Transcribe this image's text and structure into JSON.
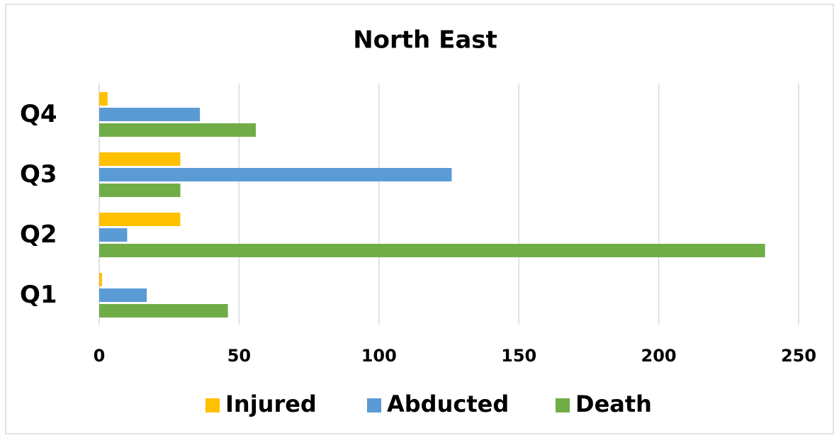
{
  "chart_data": {
    "type": "bar",
    "orientation": "horizontal",
    "title": "North East",
    "categories": [
      "Q1",
      "Q2",
      "Q3",
      "Q4"
    ],
    "series": [
      {
        "name": "Injured",
        "color": "#ffc000",
        "values": [
          1,
          29,
          29,
          3
        ]
      },
      {
        "name": "Abducted",
        "color": "#5b9bd5",
        "values": [
          17,
          10,
          126,
          36
        ]
      },
      {
        "name": "Death",
        "color": "#70ad47",
        "values": [
          46,
          238,
          29,
          56
        ]
      }
    ],
    "xlim": [
      0,
      250
    ],
    "xticks": [
      0,
      50,
      100,
      150,
      200,
      250
    ],
    "grid": true,
    "legend": "bottom"
  }
}
